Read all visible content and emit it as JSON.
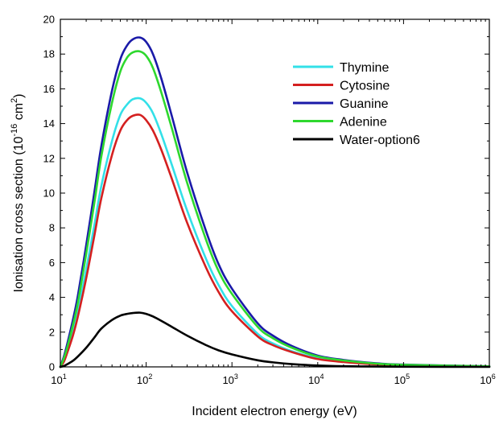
{
  "chart_data": {
    "type": "line",
    "xlabel": "Incident electron energy (eV)",
    "ylabel_main": "Ionisation cross section (10",
    "ylabel_exp1": "-16",
    "ylabel_mid": " cm",
    "ylabel_exp2": "2",
    "ylabel_end": ")",
    "xscale": "log",
    "xlim": [
      10,
      1000000
    ],
    "ylim": [
      0,
      20
    ],
    "xticks": [
      {
        "value": 10,
        "base": "10",
        "exp": "1"
      },
      {
        "value": 100,
        "base": "10",
        "exp": "2"
      },
      {
        "value": 1000,
        "base": "10",
        "exp": "3"
      },
      {
        "value": 10000,
        "base": "10",
        "exp": "4"
      },
      {
        "value": 100000,
        "base": "10",
        "exp": "5"
      },
      {
        "value": 1000000,
        "base": "10",
        "exp": "6"
      }
    ],
    "yticks": [
      "0",
      "2",
      "4",
      "6",
      "8",
      "10",
      "12",
      "14",
      "16",
      "18",
      "20"
    ],
    "legend_position": "top-right",
    "x": [
      10,
      11,
      12,
      14,
      16,
      20,
      25,
      30,
      40,
      50,
      60,
      70,
      85,
      100,
      120,
      150,
      200,
      300,
      500,
      700,
      1000,
      2000,
      3000,
      5000,
      10000,
      20000,
      50000,
      100000,
      1000000
    ],
    "series": [
      {
        "name": "Thymine",
        "color": "#33e0e8",
        "values": [
          0.0,
          0.4,
          0.9,
          2.0,
          3.2,
          5.6,
          8.2,
          10.4,
          13.0,
          14.5,
          15.1,
          15.4,
          15.45,
          15.2,
          14.6,
          13.4,
          11.6,
          9.0,
          6.2,
          4.7,
          3.5,
          1.9,
          1.35,
          0.9,
          0.5,
          0.3,
          0.15,
          0.1,
          0.02
        ]
      },
      {
        "name": "Cytosine",
        "color": "#d42020",
        "values": [
          0.0,
          0.3,
          0.8,
          1.8,
          2.9,
          5.1,
          7.6,
          9.7,
          12.2,
          13.6,
          14.2,
          14.45,
          14.5,
          14.2,
          13.6,
          12.5,
          10.8,
          8.3,
          5.7,
          4.3,
          3.2,
          1.75,
          1.25,
          0.85,
          0.45,
          0.28,
          0.14,
          0.09,
          0.02
        ]
      },
      {
        "name": "Guanine",
        "color": "#1a1aa8",
        "values": [
          0.0,
          0.6,
          1.3,
          2.7,
          4.1,
          7.0,
          10.1,
          12.7,
          15.9,
          17.7,
          18.5,
          18.85,
          18.95,
          18.7,
          18.0,
          16.6,
          14.4,
          11.2,
          7.8,
          5.9,
          4.5,
          2.5,
          1.8,
          1.2,
          0.65,
          0.4,
          0.2,
          0.13,
          0.03
        ]
      },
      {
        "name": "Adenine",
        "color": "#2ed82e",
        "values": [
          0.0,
          0.5,
          1.1,
          2.4,
          3.7,
          6.5,
          9.5,
          12.1,
          15.2,
          17.0,
          17.8,
          18.1,
          18.15,
          17.9,
          17.2,
          15.8,
          13.7,
          10.6,
          7.3,
          5.5,
          4.2,
          2.3,
          1.65,
          1.1,
          0.6,
          0.37,
          0.18,
          0.12,
          0.03
        ]
      },
      {
        "name": "Water-option6",
        "color": "#000000",
        "values": [
          0.0,
          0.05,
          0.15,
          0.35,
          0.6,
          1.1,
          1.7,
          2.2,
          2.7,
          2.95,
          3.05,
          3.1,
          3.12,
          3.05,
          2.9,
          2.65,
          2.3,
          1.8,
          1.25,
          0.95,
          0.72,
          0.38,
          0.26,
          0.16,
          0.08,
          0.04,
          0.02,
          0.01,
          0.0
        ]
      }
    ]
  }
}
